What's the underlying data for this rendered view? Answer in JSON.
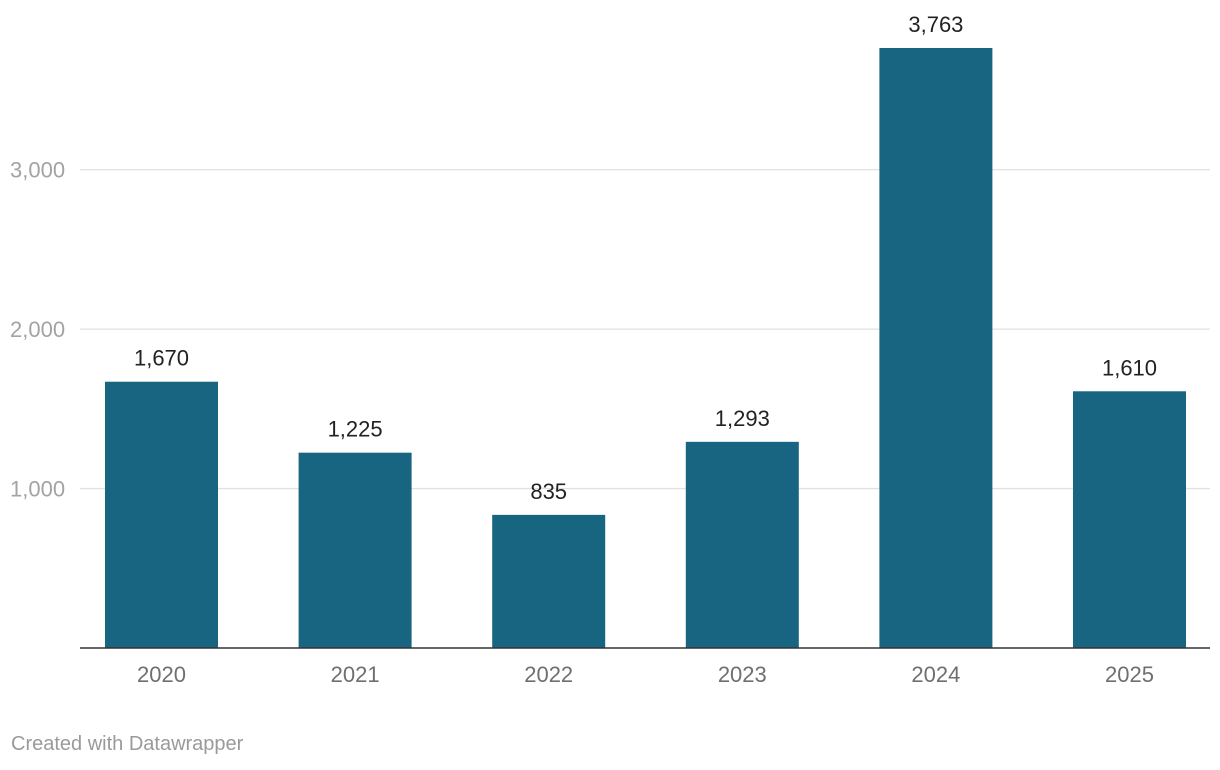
{
  "chart_data": {
    "type": "bar",
    "categories": [
      "2020",
      "2021",
      "2022",
      "2023",
      "2024",
      "2025"
    ],
    "values": [
      1670,
      1225,
      835,
      1293,
      3763,
      1610
    ],
    "value_labels": [
      "1,670",
      "1,225",
      "835",
      "1,293",
      "3,763",
      "1,610"
    ],
    "y_ticks": [
      1000,
      2000,
      3000
    ],
    "y_tick_labels": [
      "1,000",
      "2,000",
      "3,000"
    ],
    "ylim": [
      0,
      3763
    ],
    "grid": true,
    "legend": "none",
    "bar_color": "#176580"
  },
  "footer": {
    "credit": "Created with Datawrapper"
  }
}
